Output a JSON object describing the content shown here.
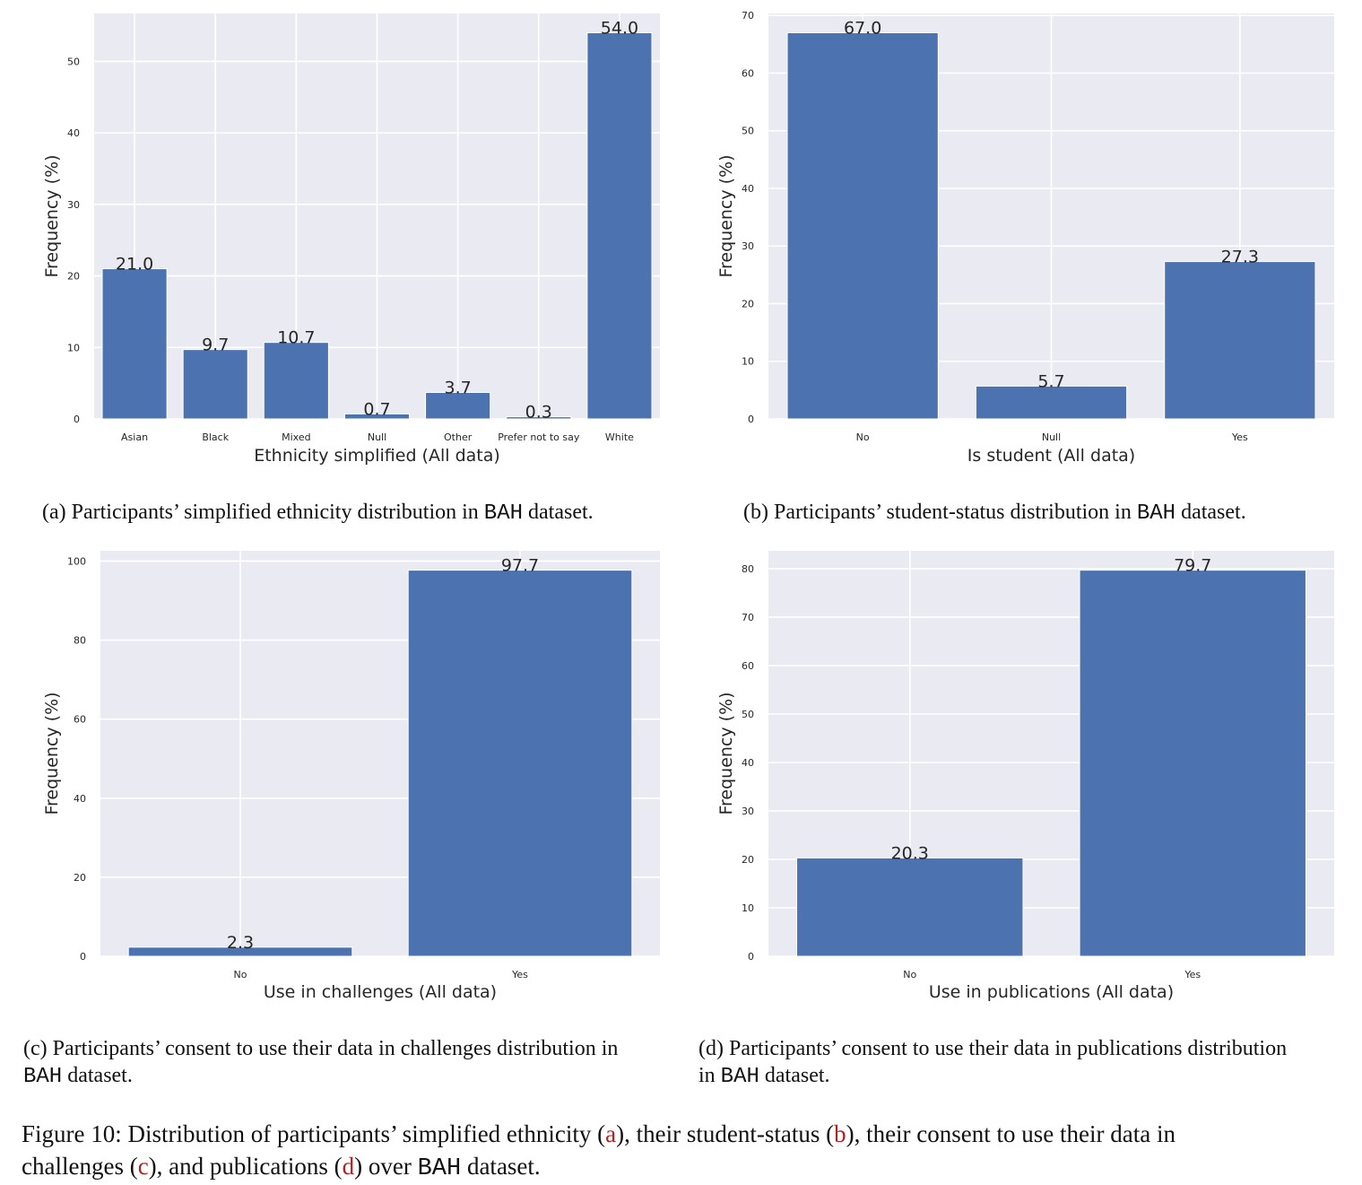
{
  "chart_data": [
    {
      "type": "bar",
      "categories": [
        "Asian",
        "Black",
        "Mixed",
        "Null",
        "Other",
        "Prefer not to say",
        "White"
      ],
      "values": [
        21.0,
        9.7,
        10.7,
        0.7,
        3.7,
        0.3,
        54.0
      ],
      "value_labels": [
        "21.0",
        "9.7",
        "10.7",
        "0.7",
        "3.7",
        "0.3",
        "54.0"
      ],
      "xlabel": "Ethnicity simplified (All data)",
      "ylabel": "Frequency (%)",
      "ylim": [
        0,
        56.7
      ],
      "yticks": [
        0,
        10,
        20,
        30,
        40,
        50
      ],
      "grid": true
    },
    {
      "type": "bar",
      "categories": [
        "No",
        "Null",
        "Yes"
      ],
      "values": [
        67.0,
        5.7,
        27.3
      ],
      "value_labels": [
        "67.0",
        "5.7",
        "27.3"
      ],
      "xlabel": "Is student (All data)",
      "ylabel": "Frequency (%)",
      "ylim": [
        0,
        70.35
      ],
      "yticks": [
        0,
        10,
        20,
        30,
        40,
        50,
        60,
        70
      ],
      "grid": true
    },
    {
      "type": "bar",
      "categories": [
        "No",
        "Yes"
      ],
      "values": [
        2.3,
        97.7
      ],
      "value_labels": [
        "2.3",
        "97.7"
      ],
      "xlabel": "Use in challenges (All data)",
      "ylabel": "Frequency (%)",
      "ylim": [
        0,
        102.6
      ],
      "yticks": [
        0,
        20,
        40,
        60,
        80,
        100
      ],
      "grid": true
    },
    {
      "type": "bar",
      "categories": [
        "No",
        "Yes"
      ],
      "values": [
        20.3,
        79.7
      ],
      "value_labels": [
        "20.3",
        "79.7"
      ],
      "xlabel": "Use in publications (All data)",
      "ylabel": "Frequency (%)",
      "ylim": [
        0,
        83.7
      ],
      "yticks": [
        0,
        10,
        20,
        30,
        40,
        50,
        60,
        70,
        80
      ],
      "grid": true
    }
  ],
  "captions": {
    "a": {
      "prefix": "(a) Participants’ simplified ethnicity distribution in ",
      "code": "BAH",
      "suffix": " dataset."
    },
    "b": {
      "prefix": "(b) Participants’ student-status distribution in ",
      "code": "BAH",
      "suffix": " dataset."
    },
    "c": {
      "line1": "(c) Participants’ consent to use their data in challenges distribution in",
      "code": "BAH",
      "suffix": " dataset."
    },
    "d": {
      "line1": "(d) Participants’ consent to use their data in publications distribution",
      "prefix2": "in ",
      "code": "BAH",
      "suffix": " dataset."
    }
  },
  "figure_caption": {
    "part1": "Figure 10: Distribution of participants’ simplified ethnicity (",
    "ref_a": "a",
    "part2": "), their student-status (",
    "ref_b": "b",
    "part3": "), their consent to use their data in",
    "part4": "challenges (",
    "ref_c": "c",
    "part5": "), and publications (",
    "ref_d": "d",
    "part6": ") over ",
    "code": "BAH",
    "part7": " dataset."
  },
  "colors": {
    "bar": "#4c72b0",
    "plot_bg": "#eaeaf2",
    "grid": "#ffffff",
    "text": "#262626",
    "ref_link": "#b22222"
  }
}
